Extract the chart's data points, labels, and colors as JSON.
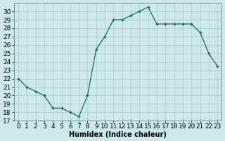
{
  "x": [
    0,
    1,
    2,
    3,
    4,
    5,
    6,
    7,
    8,
    9,
    10,
    11,
    12,
    13,
    14,
    15,
    16,
    17,
    18,
    19,
    20,
    21,
    22,
    23
  ],
  "y": [
    22,
    21,
    20.5,
    20,
    18.5,
    18.5,
    18,
    17.5,
    20,
    25.5,
    27,
    29,
    29,
    29.5,
    30,
    30.5,
    28.5,
    28.5,
    28.5,
    28.5,
    28.5,
    27.5,
    25,
    23.5
  ],
  "xlabel": "Humidex (Indice chaleur)",
  "ylim": [
    17,
    31
  ],
  "xlim": [
    -0.5,
    23.5
  ],
  "yticks": [
    17,
    18,
    19,
    20,
    21,
    22,
    23,
    24,
    25,
    26,
    27,
    28,
    29,
    30
  ],
  "xticks": [
    0,
    1,
    2,
    3,
    4,
    5,
    6,
    7,
    8,
    9,
    10,
    11,
    12,
    13,
    14,
    15,
    16,
    17,
    18,
    19,
    20,
    21,
    22,
    23
  ],
  "line_color": "#1a6b5a",
  "marker": "+",
  "bg_color": "#cce8e8",
  "grid_color": "#aacccc",
  "label_fontsize": 7,
  "tick_fontsize": 6.5
}
